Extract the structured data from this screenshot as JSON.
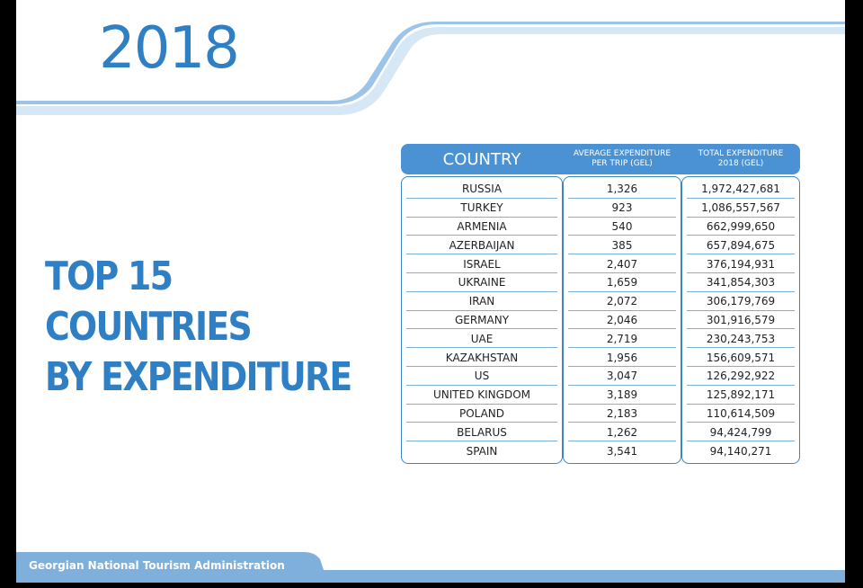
{
  "year": "2018",
  "headline": [
    "TOP 15",
    "COUNTRIES",
    "BY EXPENDITURE"
  ],
  "table": {
    "headers": {
      "country": "COUNTRY",
      "avg_line1": "AVERAGE EXPENDITURE",
      "avg_line2": "PER TRIP (GEL)",
      "total_line1": "TOTAL EXPENDITURE",
      "total_line2": "2018 (GEL)"
    },
    "rows": [
      {
        "country": "RUSSIA",
        "avg": "1,326",
        "total": "1,972,427,681"
      },
      {
        "country": "TURKEY",
        "avg": "923",
        "total": "1,086,557,567"
      },
      {
        "country": "ARMENIA",
        "avg": "540",
        "total": "662,999,650"
      },
      {
        "country": "AZERBAIJAN",
        "avg": "385",
        "total": "657,894,675"
      },
      {
        "country": "ISRAEL",
        "avg": "2,407",
        "total": "376,194,931"
      },
      {
        "country": "UKRAINE",
        "avg": "1,659",
        "total": "341,854,303"
      },
      {
        "country": "IRAN",
        "avg": "2,072",
        "total": "306,179,769"
      },
      {
        "country": "GERMANY",
        "avg": "2,046",
        "total": "301,916,579"
      },
      {
        "country": "UAE",
        "avg": "2,719",
        "total": "230,243,753"
      },
      {
        "country": "KAZAKHSTAN",
        "avg": "1,956",
        "total": "156,609,571"
      },
      {
        "country": "US",
        "avg": "3,047",
        "total": "126,292,922"
      },
      {
        "country": "UNITED KINGDOM",
        "avg": "3,189",
        "total": "125,892,171"
      },
      {
        "country": "POLAND",
        "avg": "2,183",
        "total": "110,614,509"
      },
      {
        "country": "BELARUS",
        "avg": "1,262",
        "total": "94,424,799"
      },
      {
        "country": "SPAIN",
        "avg": "3,541",
        "total": "94,140,271"
      }
    ]
  },
  "footer": "Georgian National Tourism Administration",
  "colors": {
    "brand_blue": "#2e7fc3",
    "header_blue": "#4a92d4",
    "light_blue": "#cfe3f4",
    "footer_blue": "#7fb0dc"
  }
}
